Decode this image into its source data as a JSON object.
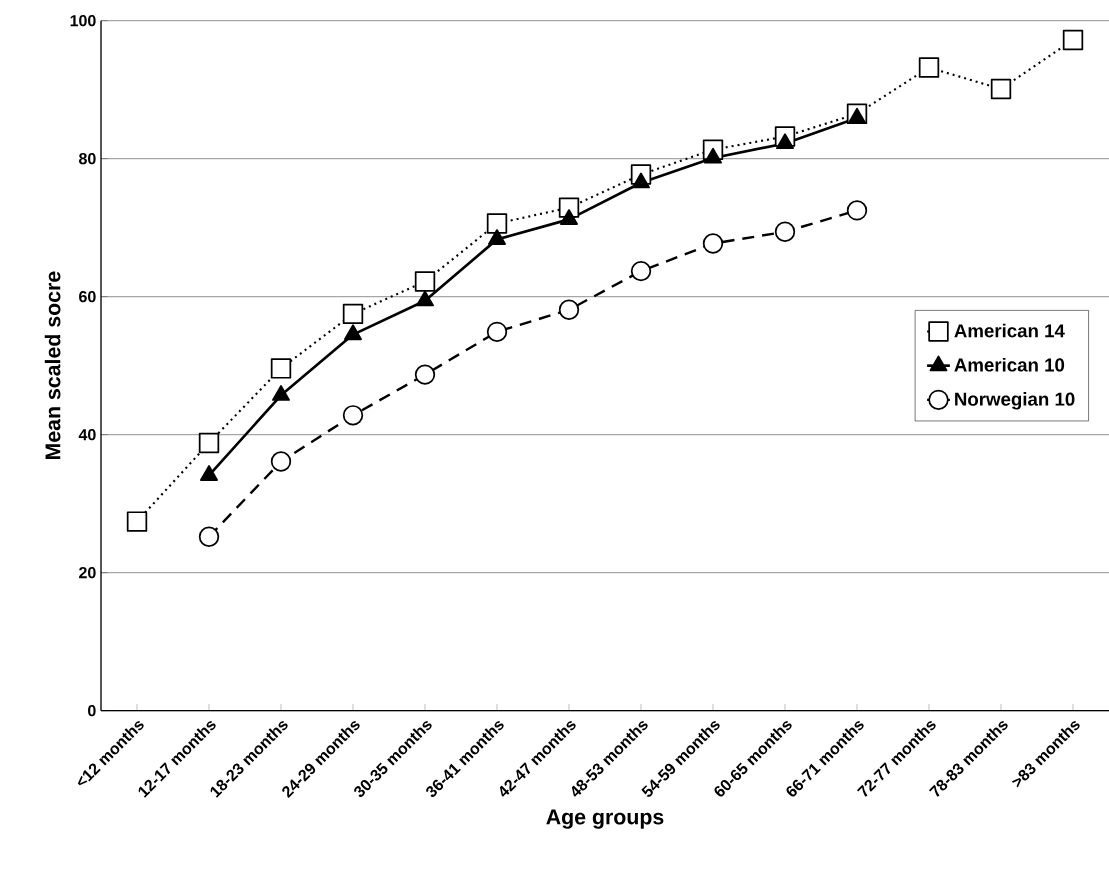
{
  "chart_data": {
    "type": "line",
    "xlabel": "Age groups",
    "ylabel": "Mean scaled socre",
    "categories": [
      "<12 months",
      "12-17 months",
      "18-23 months",
      "24-29 months",
      "30-35 months",
      "36-41 months",
      "42-47 months",
      "48-53 months",
      "54-59 months",
      "60-65 months",
      "66-71 months",
      "72-77 months",
      "78-83 months",
      ">83 months"
    ],
    "series": [
      {
        "name": "American 14",
        "color": "#000000",
        "marker": "square",
        "line_style": "dotted",
        "values": [
          27.4,
          38.8,
          49.6,
          57.5,
          62.2,
          70.6,
          72.9,
          77.7,
          81.3,
          83.2,
          86.5,
          93.2,
          90.1,
          97.2
        ]
      },
      {
        "name": "American 10",
        "color": "#000000",
        "marker": "triangle",
        "line_style": "solid",
        "values": [
          null,
          34.1,
          45.7,
          54.5,
          59.4,
          68.3,
          71.2,
          76.5,
          80.1,
          82.2,
          85.9,
          null,
          null,
          null
        ]
      },
      {
        "name": "Norwegian 10",
        "color": "#000000",
        "marker": "circle",
        "line_style": "dashed",
        "values": [
          null,
          25.2,
          36.1,
          42.8,
          48.7,
          54.9,
          58.1,
          63.7,
          67.7,
          69.4,
          72.5,
          null,
          null,
          null
        ]
      }
    ],
    "ylim": [
      0,
      100
    ],
    "yticks": [
      0,
      20,
      40,
      60,
      80,
      100
    ],
    "grid": "y",
    "legend": "right"
  }
}
